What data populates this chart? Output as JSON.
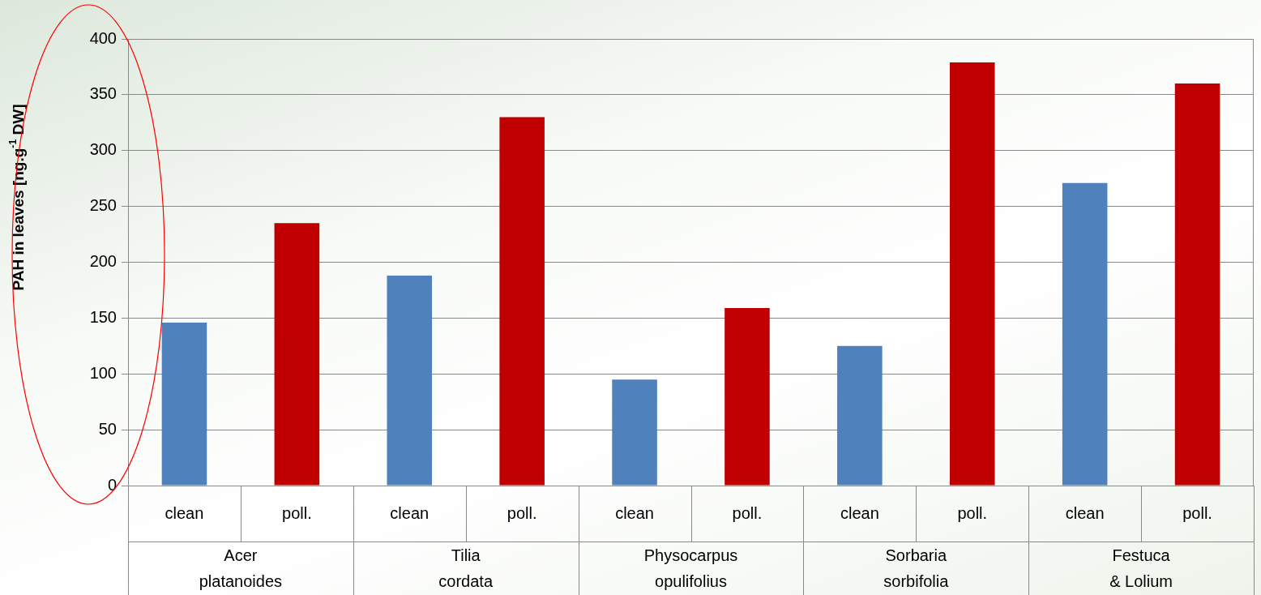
{
  "chart_data": {
    "type": "bar",
    "ylabel": "PAH in leaves [ng.g$^{-1}$ DW]",
    "categories": [
      "Acer platanoides",
      "Tilia cordata",
      "Physocarpus opulifolius",
      "Sorbaria sorbifolia",
      "Festuca & Lolium"
    ],
    "series": [
      {
        "name": "clean",
        "color": "#4f81bd",
        "values": [
          146,
          188,
          95,
          125,
          271
        ]
      },
      {
        "name": "poll.",
        "color": "#c00000",
        "values": [
          235,
          330,
          159,
          379,
          360
        ]
      }
    ],
    "ylim": [
      0,
      400
    ],
    "yticks": [
      0,
      50,
      100,
      150,
      200,
      250,
      300,
      350,
      400
    ],
    "grid": "y",
    "legend": false
  }
}
